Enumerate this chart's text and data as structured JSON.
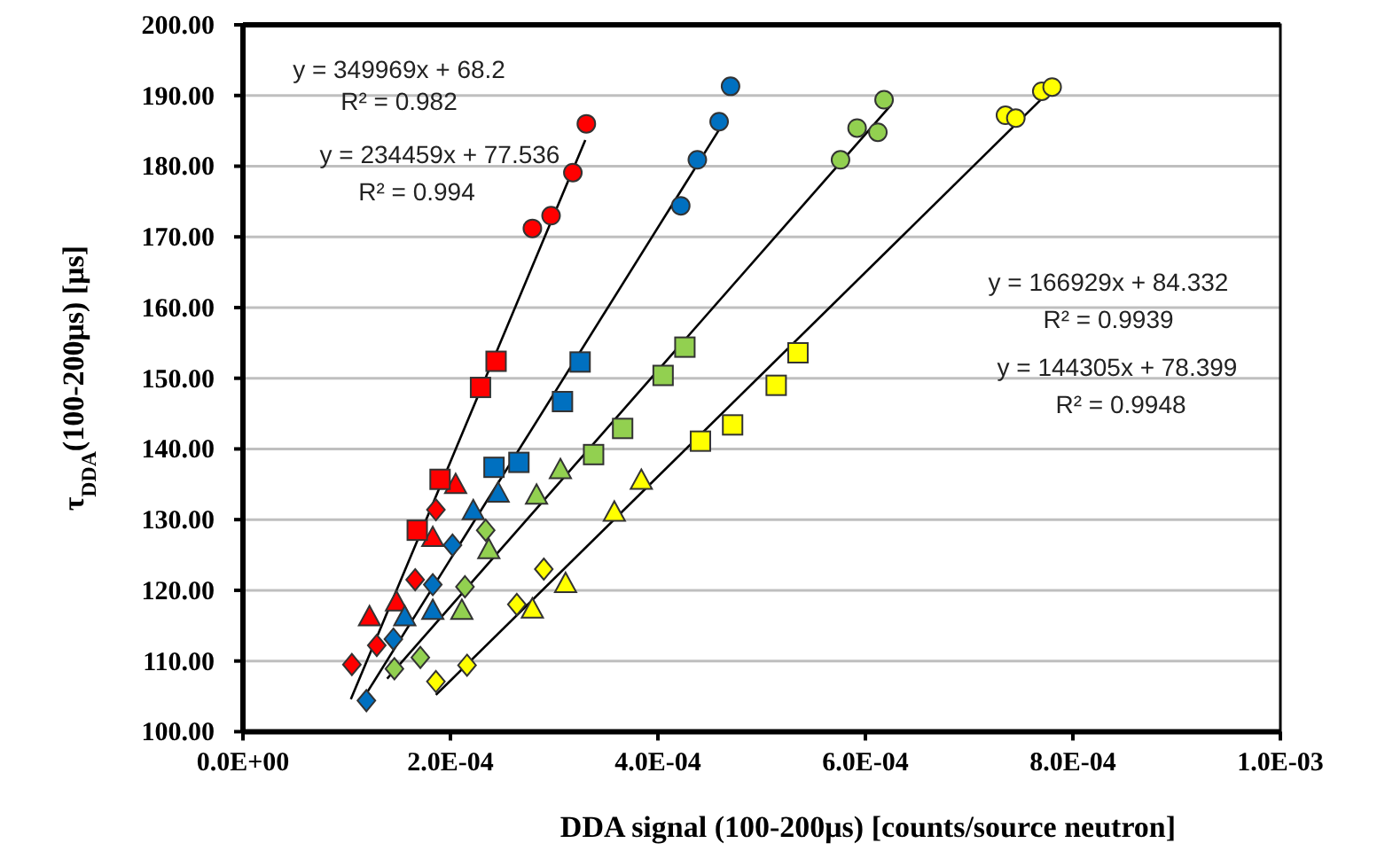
{
  "chart_data": {
    "type": "scatter",
    "xlabel": "DDA signal (100-200μs) [counts/source neutron]",
    "ylabel": "τ$_{DDA}$(100-200μs) [μs]",
    "xlim": [
      0,
      0.001
    ],
    "ylim": [
      100,
      200
    ],
    "xticks": [
      {
        "value": 0,
        "label": "0.0E+00"
      },
      {
        "value": 0.0002,
        "label": "2.0E-04"
      },
      {
        "value": 0.0004,
        "label": "4.0E-04"
      },
      {
        "value": 0.0006,
        "label": "6.0E-04"
      },
      {
        "value": 0.0008,
        "label": "8.0E-04"
      },
      {
        "value": 0.001,
        "label": "1.0E-03"
      }
    ],
    "yticks": [
      {
        "value": 100,
        "label": "100.00"
      },
      {
        "value": 110,
        "label": "110.00"
      },
      {
        "value": 120,
        "label": "120.00"
      },
      {
        "value": 130,
        "label": "130.00"
      },
      {
        "value": 140,
        "label": "140.00"
      },
      {
        "value": 150,
        "label": "150.00"
      },
      {
        "value": 160,
        "label": "160.00"
      },
      {
        "value": 170,
        "label": "170.00"
      },
      {
        "value": 180,
        "label": "180.00"
      },
      {
        "value": 190,
        "label": "190.00"
      },
      {
        "value": 200,
        "label": "200.00"
      }
    ],
    "grid": "y",
    "annotations": [
      "y = 349969x + 68.2",
      "R² = 0.982",
      "y = 234459x + 77.536",
      "R² = 0.994",
      "y = 166929x + 84.332",
      "R² = 0.9939",
      "y = 144305x + 78.399",
      "R² = 0.9948"
    ],
    "series": [
      {
        "type": "line",
        "color": "#000000",
        "marker": "none",
        "x": [
          0.000104,
          0.00033
        ],
        "values": [
          104.6,
          183.7
        ]
      },
      {
        "type": "line",
        "color": "#000000",
        "marker": "none",
        "x": [
          0.000119,
          0.00046
        ],
        "values": [
          105.4,
          185.4
        ]
      },
      {
        "type": "line",
        "color": "#000000",
        "marker": "none",
        "x": [
          0.000139,
          0.000625
        ],
        "values": [
          107.5,
          188.7
        ]
      },
      {
        "type": "line",
        "color": "#000000",
        "marker": "none",
        "x": [
          0.000186,
          0.000785
        ],
        "values": [
          105.2,
          191.7
        ]
      },
      {
        "color": "#ff0000",
        "marker": "diamond",
        "x": [
          0.000105,
          0.000129,
          0.000166,
          0.000186
        ],
        "values": [
          109.5,
          112.2,
          121.5,
          131.4
        ]
      },
      {
        "color": "#ff0000",
        "marker": "triangle",
        "x": [
          0.000122,
          0.000148,
          0.000183,
          0.000205
        ],
        "values": [
          116.3,
          118.4,
          127.5,
          135.0
        ]
      },
      {
        "color": "#ff0000",
        "marker": "square",
        "x": [
          0.000168,
          0.00019,
          0.000229,
          0.000244
        ],
        "values": [
          128.5,
          135.7,
          148.7,
          152.4
        ]
      },
      {
        "color": "#ff0000",
        "marker": "circle",
        "x": [
          0.000279,
          0.000297,
          0.000318,
          0.000331
        ],
        "values": [
          171.2,
          173.0,
          179.1,
          186.0
        ]
      },
      {
        "color": "#0070c0",
        "marker": "diamond",
        "x": [
          0.000119,
          0.000145,
          0.000183,
          0.000202
        ],
        "values": [
          104.4,
          113.1,
          120.8,
          126.4
        ]
      },
      {
        "color": "#0070c0",
        "marker": "triangle",
        "x": [
          0.000156,
          0.000183,
          0.000222,
          0.000246
        ],
        "values": [
          116.3,
          117.2,
          131.3,
          133.8
        ]
      },
      {
        "color": "#0070c0",
        "marker": "square",
        "x": [
          0.000242,
          0.000266,
          0.000308,
          0.000325
        ],
        "values": [
          137.4,
          138.1,
          146.7,
          152.3
        ]
      },
      {
        "color": "#0070c0",
        "marker": "circle",
        "x": [
          0.000422,
          0.000438,
          0.000459,
          0.00047
        ],
        "values": [
          174.4,
          180.9,
          186.3,
          191.3
        ]
      },
      {
        "color": "#92d050",
        "marker": "diamond",
        "x": [
          0.000146,
          0.000171,
          0.000214,
          0.000234
        ],
        "values": [
          108.9,
          110.5,
          120.5,
          128.5
        ]
      },
      {
        "color": "#92d050",
        "marker": "triangle",
        "x": [
          0.000211,
          0.000237,
          0.000283,
          0.000306
        ],
        "values": [
          117.2,
          125.8,
          133.5,
          137.1
        ]
      },
      {
        "color": "#92d050",
        "marker": "square",
        "x": [
          0.000338,
          0.000366,
          0.000405,
          0.000426
        ],
        "values": [
          139.2,
          142.9,
          150.4,
          154.4
        ]
      },
      {
        "color": "#92d050",
        "marker": "circle",
        "x": [
          0.000576,
          0.000592,
          0.000612,
          0.000618
        ],
        "values": [
          180.9,
          185.4,
          184.8,
          189.4
        ]
      },
      {
        "color": "#ffff00",
        "marker": "diamond",
        "x": [
          0.000186,
          0.000216,
          0.000264,
          0.00029
        ],
        "values": [
          107.1,
          109.4,
          118.0,
          123.0
        ]
      },
      {
        "color": "#ffff00",
        "marker": "triangle",
        "x": [
          0.000279,
          0.000311,
          0.000358,
          0.000384
        ],
        "values": [
          117.4,
          121.0,
          131.1,
          135.6
        ]
      },
      {
        "color": "#ffff00",
        "marker": "square",
        "x": [
          0.000441,
          0.000472,
          0.000514,
          0.000535
        ],
        "values": [
          141.1,
          143.4,
          149.0,
          153.6
        ]
      },
      {
        "color": "#ffff00",
        "marker": "circle",
        "x": [
          0.000735,
          0.000745,
          0.00077,
          0.00078
        ],
        "values": [
          187.2,
          186.8,
          190.6,
          191.2
        ]
      }
    ]
  }
}
